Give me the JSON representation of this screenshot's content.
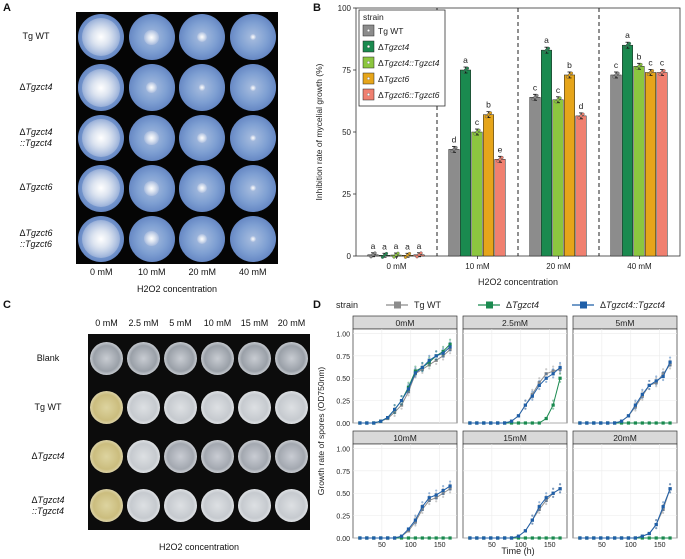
{
  "panels": {
    "a": {
      "letter": "A",
      "rows": [
        {
          "prefix": "",
          "name": "Tg WT",
          "second": ""
        },
        {
          "prefix": "Δ",
          "name": "Tgzct4",
          "second": ""
        },
        {
          "prefix": "Δ",
          "name": "Tgzct4",
          "second": "::Tgzct4"
        },
        {
          "prefix": "Δ",
          "name": "Tgzct6",
          "second": ""
        },
        {
          "prefix": "Δ",
          "name": "Tgzct6",
          "second": "::Tgzct6"
        }
      ],
      "columns": [
        "0 mM",
        "10 mM",
        "20 mM",
        "40 mM"
      ],
      "xtitle": "H2O2 concentration"
    },
    "c": {
      "letter": "C",
      "columns": [
        "0 mM",
        "2.5 mM",
        "5 mM",
        "10 mM",
        "15 mM",
        "20 mM"
      ],
      "rows": [
        {
          "prefix": "",
          "name": "Blank",
          "second": ""
        },
        {
          "prefix": "",
          "name": "Tg WT",
          "second": ""
        },
        {
          "prefix": "Δ",
          "name": "Tgzct4",
          "second": ""
        },
        {
          "prefix": "Δ",
          "name": "Tgzct4",
          "second": "::Tgzct4"
        }
      ],
      "xtitle": "H2O2 concentration"
    }
  },
  "colors": {
    "wt": "#8c8c8c",
    "zct4": "#1a8a4f",
    "zct4c": "#8cc63f",
    "zct6": "#e6a51a",
    "zct6c": "#f08070",
    "comp_blue": "#1f5fa8"
  },
  "chart_data": [
    {
      "panel": "B",
      "type": "bar",
      "title": "",
      "xlabel": "H2O2 concentration",
      "ylabel": "Inhibition rate of mycelial growth (%)",
      "ylim": [
        0,
        100
      ],
      "yticks": [
        0,
        25,
        50,
        75,
        100
      ],
      "categories": [
        "0 mM",
        "10 mM",
        "20 mM",
        "40 mM"
      ],
      "legend_title": "strain",
      "legend_position": "top-left",
      "series": [
        {
          "name": "Tg WT",
          "prefix": "",
          "italic": false,
          "color": "#8c8c8c",
          "values": [
            0.5,
            43,
            64,
            73
          ],
          "labels": [
            "a",
            "d",
            "c",
            "c"
          ]
        },
        {
          "name": "Tgzct4",
          "prefix": "Δ",
          "italic": true,
          "color": "#1a8a4f",
          "values": [
            0.3,
            75,
            83,
            85
          ],
          "labels": [
            "a",
            "a",
            "a",
            "a"
          ]
        },
        {
          "name": "Tgzct4::Tgzct4",
          "prefix": "Δ",
          "italic": true,
          "color": "#8cc63f",
          "values": [
            0.4,
            50,
            63,
            76.5
          ],
          "labels": [
            "a",
            "c",
            "c",
            "b"
          ]
        },
        {
          "name": "Tgzct6",
          "prefix": "Δ",
          "italic": true,
          "color": "#e6a51a",
          "values": [
            0.3,
            57,
            73,
            74
          ],
          "labels": [
            "a",
            "b",
            "b",
            "c"
          ]
        },
        {
          "name": "Tgzct6::Tgzct6",
          "prefix": "Δ",
          "italic": true,
          "color": "#f08070",
          "values": [
            0.5,
            39,
            56.5,
            74
          ],
          "labels": [
            "a",
            "e",
            "d",
            "c"
          ]
        }
      ]
    },
    {
      "panel": "D",
      "type": "line",
      "title": "",
      "xlabel": "Time (h)",
      "ylabel": "Growth rate of spores (OD750nm)",
      "legend_title": "strain",
      "legend_position": "top",
      "xlim": [
        0,
        180
      ],
      "xticks": [
        50,
        100,
        150
      ],
      "ylim": [
        0,
        1.05
      ],
      "yticks": [
        0.0,
        0.25,
        0.5,
        0.75,
        1.0
      ],
      "ytick_labels": [
        "0.00",
        "0.25",
        "0.50",
        "0.75",
        "1.00"
      ],
      "facets": [
        "0mM",
        "2.5mM",
        "5mM",
        "10mM",
        "15mM",
        "20mM"
      ],
      "x": [
        12,
        24,
        36,
        48,
        60,
        72,
        84,
        96,
        108,
        120,
        132,
        144,
        156,
        168
      ],
      "series": [
        {
          "name": "Tg WT",
          "prefix": "",
          "italic": false,
          "color": "#8c8c8c",
          "marker": "square",
          "facet_values": [
            [
              0,
              0,
              0,
              0.02,
              0.05,
              0.12,
              0.2,
              0.35,
              0.55,
              0.6,
              0.65,
              0.7,
              0.75,
              0.82
            ],
            [
              0,
              0,
              0,
              0,
              0,
              0,
              0.02,
              0.08,
              0.2,
              0.32,
              0.45,
              0.55,
              0.58,
              0.6
            ],
            [
              0,
              0,
              0,
              0,
              0,
              0,
              0.02,
              0.08,
              0.18,
              0.3,
              0.42,
              0.45,
              0.55,
              0.65
            ],
            [
              0,
              0,
              0,
              0,
              0,
              0,
              0.02,
              0.08,
              0.18,
              0.32,
              0.42,
              0.45,
              0.5,
              0.55
            ],
            [
              0,
              0,
              0,
              0,
              0,
              0,
              0,
              0.02,
              0.08,
              0.2,
              0.32,
              0.42,
              0.5,
              0.55
            ],
            [
              0,
              0,
              0,
              0,
              0,
              0,
              0,
              0,
              0,
              0.02,
              0.05,
              0.15,
              0.32,
              0.55
            ]
          ]
        },
        {
          "name": "Tgzct4",
          "prefix": "Δ",
          "italic": true,
          "color": "#1a8a4f",
          "marker": "square",
          "facet_values": [
            [
              0,
              0,
              0,
              0.02,
              0.06,
              0.15,
              0.25,
              0.4,
              0.58,
              0.62,
              0.68,
              0.75,
              0.8,
              0.88
            ],
            [
              0,
              0,
              0,
              0,
              0,
              0,
              0,
              0,
              0,
              0,
              0,
              0.05,
              0.2,
              0.5
            ],
            [
              0,
              0,
              0,
              0,
              0,
              0,
              0,
              0,
              0,
              0,
              0,
              0,
              0,
              0
            ],
            [
              0,
              0,
              0,
              0,
              0,
              0,
              0,
              0,
              0,
              0,
              0,
              0,
              0,
              0
            ],
            [
              0,
              0,
              0,
              0,
              0,
              0,
              0,
              0,
              0,
              0,
              0,
              0,
              0,
              0
            ],
            [
              0,
              0,
              0,
              0,
              0,
              0,
              0,
              0,
              0,
              0,
              0,
              0,
              0,
              0
            ]
          ]
        },
        {
          "name": "Tgzct4::Tgzct4",
          "prefix": "Δ",
          "italic": true,
          "color": "#1f5fa8",
          "marker": "square",
          "facet_values": [
            [
              0,
              0,
              0,
              0.02,
              0.06,
              0.15,
              0.25,
              0.38,
              0.56,
              0.62,
              0.7,
              0.75,
              0.78,
              0.85
            ],
            [
              0,
              0,
              0,
              0,
              0,
              0,
              0.02,
              0.08,
              0.2,
              0.3,
              0.42,
              0.5,
              0.55,
              0.62
            ],
            [
              0,
              0,
              0,
              0,
              0,
              0,
              0.02,
              0.08,
              0.2,
              0.32,
              0.42,
              0.47,
              0.52,
              0.68
            ],
            [
              0,
              0,
              0,
              0,
              0,
              0,
              0.02,
              0.1,
              0.2,
              0.35,
              0.45,
              0.48,
              0.53,
              0.58
            ],
            [
              0,
              0,
              0,
              0,
              0,
              0,
              0,
              0.02,
              0.08,
              0.2,
              0.35,
              0.45,
              0.5,
              0.55
            ],
            [
              0,
              0,
              0,
              0,
              0,
              0,
              0,
              0,
              0,
              0.02,
              0.05,
              0.15,
              0.35,
              0.55
            ]
          ]
        }
      ]
    }
  ],
  "panel_b_letter": "B",
  "panel_d_letter": "D"
}
